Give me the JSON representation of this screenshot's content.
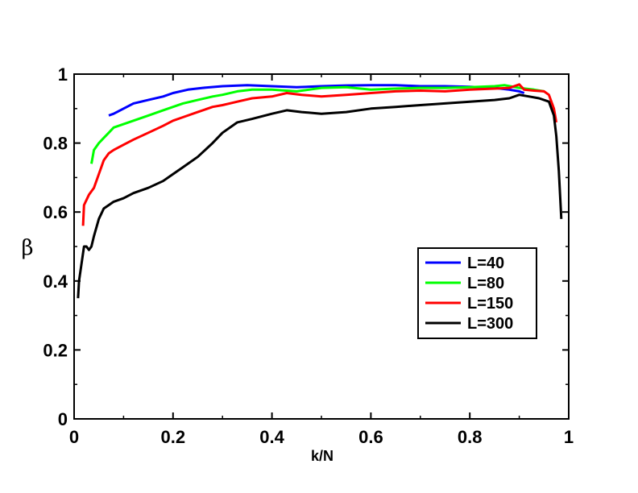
{
  "chart_data": {
    "type": "line",
    "title": "",
    "xlabel": "k/N",
    "ylabel": "β",
    "xlim": [
      0,
      1
    ],
    "ylim": [
      0,
      1
    ],
    "xticks": [
      0,
      0.2,
      0.4,
      0.6,
      0.8,
      1
    ],
    "xtick_labels": [
      "0",
      "0.2",
      "0.4",
      "0.6",
      "0.8",
      "1"
    ],
    "yticks": [
      0,
      0.2,
      0.4,
      0.6,
      0.8,
      1
    ],
    "ytick_labels": [
      "0",
      "0.2",
      "0.4",
      "0.6",
      "0.8",
      "1"
    ],
    "grid": false,
    "legend_position": "lower-right",
    "series": [
      {
        "name": "L=40",
        "color": "#0000ff",
        "x": [
          0.07,
          0.08,
          0.1,
          0.12,
          0.15,
          0.18,
          0.2,
          0.23,
          0.26,
          0.3,
          0.35,
          0.4,
          0.45,
          0.5,
          0.55,
          0.6,
          0.65,
          0.7,
          0.75,
          0.8,
          0.85,
          0.88,
          0.9,
          0.91
        ],
        "y": [
          0.88,
          0.885,
          0.9,
          0.915,
          0.925,
          0.935,
          0.945,
          0.955,
          0.96,
          0.965,
          0.968,
          0.965,
          0.962,
          0.965,
          0.967,
          0.968,
          0.968,
          0.965,
          0.965,
          0.963,
          0.96,
          0.955,
          0.95,
          0.945
        ]
      },
      {
        "name": "L=80",
        "color": "#00ff00",
        "x": [
          0.035,
          0.04,
          0.05,
          0.06,
          0.07,
          0.08,
          0.1,
          0.12,
          0.15,
          0.18,
          0.2,
          0.22,
          0.25,
          0.28,
          0.3,
          0.33,
          0.36,
          0.4,
          0.45,
          0.5,
          0.55,
          0.6,
          0.65,
          0.7,
          0.75,
          0.8,
          0.85,
          0.87,
          0.9,
          0.93,
          0.95
        ],
        "y": [
          0.74,
          0.78,
          0.8,
          0.815,
          0.83,
          0.845,
          0.855,
          0.865,
          0.88,
          0.895,
          0.905,
          0.915,
          0.925,
          0.935,
          0.94,
          0.95,
          0.955,
          0.955,
          0.95,
          0.96,
          0.962,
          0.955,
          0.958,
          0.96,
          0.96,
          0.962,
          0.965,
          0.968,
          0.96,
          0.955,
          0.95
        ]
      },
      {
        "name": "L=150",
        "color": "#ff0000",
        "x": [
          0.018,
          0.02,
          0.03,
          0.04,
          0.05,
          0.06,
          0.07,
          0.08,
          0.1,
          0.12,
          0.15,
          0.18,
          0.2,
          0.22,
          0.25,
          0.28,
          0.3,
          0.33,
          0.36,
          0.4,
          0.43,
          0.46,
          0.5,
          0.55,
          0.6,
          0.65,
          0.7,
          0.75,
          0.8,
          0.85,
          0.88,
          0.9,
          0.91,
          0.93,
          0.95,
          0.96,
          0.97,
          0.975
        ],
        "y": [
          0.56,
          0.62,
          0.65,
          0.67,
          0.71,
          0.75,
          0.77,
          0.78,
          0.795,
          0.81,
          0.83,
          0.85,
          0.865,
          0.875,
          0.89,
          0.905,
          0.91,
          0.92,
          0.93,
          0.935,
          0.945,
          0.94,
          0.935,
          0.94,
          0.945,
          0.95,
          0.952,
          0.95,
          0.955,
          0.958,
          0.96,
          0.97,
          0.955,
          0.952,
          0.95,
          0.94,
          0.9,
          0.86
        ]
      },
      {
        "name": "L=300",
        "color": "#000000",
        "x": [
          0.008,
          0.01,
          0.015,
          0.02,
          0.025,
          0.03,
          0.035,
          0.04,
          0.05,
          0.06,
          0.07,
          0.08,
          0.1,
          0.12,
          0.15,
          0.18,
          0.2,
          0.22,
          0.25,
          0.28,
          0.3,
          0.33,
          0.36,
          0.4,
          0.43,
          0.46,
          0.5,
          0.55,
          0.6,
          0.65,
          0.7,
          0.75,
          0.8,
          0.85,
          0.88,
          0.9,
          0.92,
          0.94,
          0.96,
          0.97,
          0.975,
          0.98,
          0.985
        ],
        "y": [
          0.35,
          0.4,
          0.45,
          0.5,
          0.5,
          0.49,
          0.5,
          0.53,
          0.58,
          0.61,
          0.62,
          0.63,
          0.64,
          0.655,
          0.67,
          0.69,
          0.71,
          0.73,
          0.76,
          0.8,
          0.83,
          0.86,
          0.87,
          0.885,
          0.895,
          0.89,
          0.885,
          0.89,
          0.9,
          0.905,
          0.91,
          0.915,
          0.92,
          0.925,
          0.93,
          0.94,
          0.935,
          0.93,
          0.92,
          0.88,
          0.82,
          0.72,
          0.58
        ]
      }
    ]
  }
}
